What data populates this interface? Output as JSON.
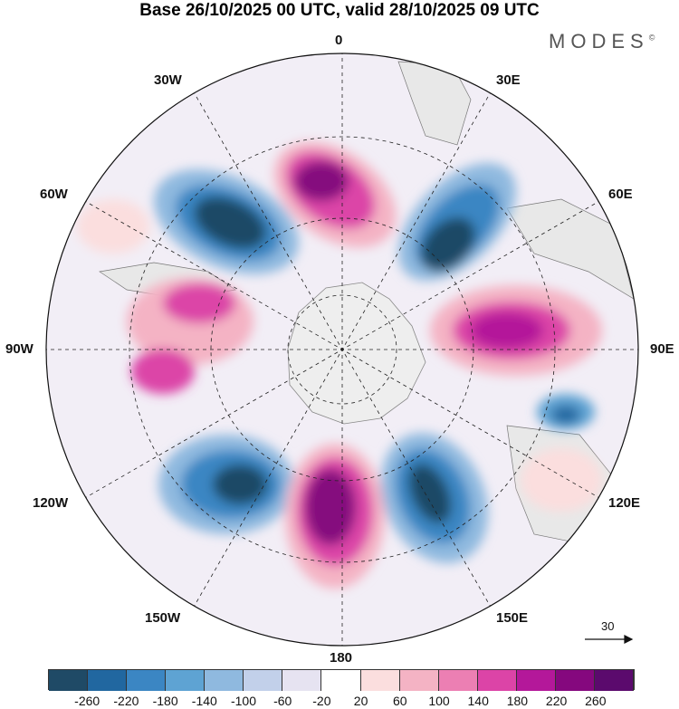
{
  "title": "Base 26/10/2025 00 UTC, valid 28/10/2025 09 UTC",
  "brand": "MODES",
  "brand_mark": "©",
  "longitudes": {
    "top": "0",
    "top_right": "30E",
    "right_upper": "60E",
    "right": "90E",
    "right_lower": "120E",
    "bottom_right": "150E",
    "bottom": "180",
    "bottom_left": "150W",
    "left_lower": "120W",
    "left": "90W",
    "left_upper": "60W",
    "top_left": "30W"
  },
  "vector_ref": "30",
  "colorbar": {
    "colors": [
      "#1f4a66",
      "#2167a0",
      "#3b86c3",
      "#5ea3d3",
      "#8fb9df",
      "#c2d0ea",
      "#e6e3f1",
      "#ffffff",
      "#fbdede",
      "#f4b3c4",
      "#ec7fb3",
      "#dc44a7",
      "#b4189a",
      "#85087e",
      "#5b0a6d"
    ],
    "labels": [
      "-260",
      "-220",
      "-180",
      "-140",
      "-100",
      "-60",
      "-20",
      "20",
      "60",
      "100",
      "140",
      "180",
      "220",
      "260"
    ]
  }
}
